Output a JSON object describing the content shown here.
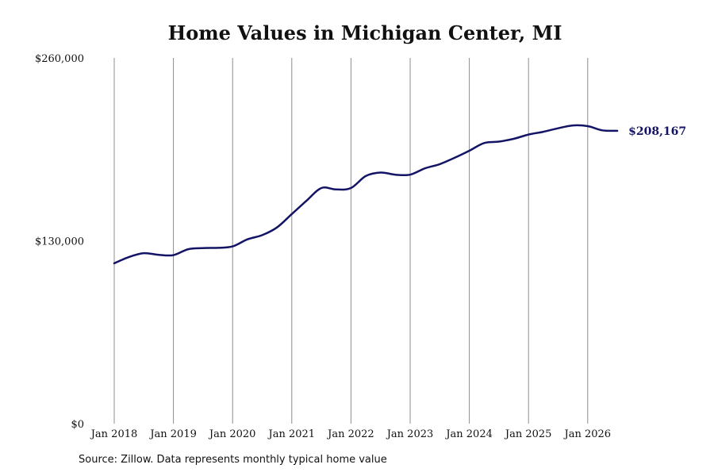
{
  "chart_data": {
    "type": "line",
    "title": "Home Values in Michigan Center, MI",
    "xlabel": "",
    "ylabel": "",
    "ylim": [
      0,
      260000
    ],
    "y_ticks": [
      {
        "value": 0,
        "label": "$0"
      },
      {
        "value": 130000,
        "label": "$130,000"
      },
      {
        "value": 260000,
        "label": "$260,000"
      }
    ],
    "x_ticks": [
      {
        "value": "2018-01",
        "label": "Jan 2018"
      },
      {
        "value": "2019-01",
        "label": "Jan 2019"
      },
      {
        "value": "2020-01",
        "label": "Jan 2020"
      },
      {
        "value": "2021-01",
        "label": "Jan 2021"
      },
      {
        "value": "2022-01",
        "label": "Jan 2022"
      },
      {
        "value": "2023-01",
        "label": "Jan 2023"
      },
      {
        "value": "2024-01",
        "label": "Jan 2024"
      },
      {
        "value": "2025-01",
        "label": "Jan 2025"
      },
      {
        "value": "2026-01",
        "label": "Jan 2026"
      }
    ],
    "grid": "vertical",
    "series": [
      {
        "color": "#141466",
        "points": [
          [
            "2018-01",
            114000
          ],
          [
            "2018-04",
            118500
          ],
          [
            "2018-07",
            121200
          ],
          [
            "2018-10",
            120000
          ],
          [
            "2019-01",
            119800
          ],
          [
            "2019-04",
            124000
          ],
          [
            "2019-07",
            124800
          ],
          [
            "2019-10",
            125000
          ],
          [
            "2020-01",
            126000
          ],
          [
            "2020-04",
            131000
          ],
          [
            "2020-07",
            134000
          ],
          [
            "2020-10",
            139500
          ],
          [
            "2021-01",
            149000
          ],
          [
            "2021-04",
            158500
          ],
          [
            "2021-07",
            167500
          ],
          [
            "2021-10",
            166500
          ],
          [
            "2022-01",
            167500
          ],
          [
            "2022-04",
            176000
          ],
          [
            "2022-07",
            178500
          ],
          [
            "2022-10",
            177000
          ],
          [
            "2023-01",
            177000
          ],
          [
            "2023-04",
            181500
          ],
          [
            "2023-07",
            184500
          ],
          [
            "2023-10",
            189000
          ],
          [
            "2024-01",
            194000
          ],
          [
            "2024-04",
            199500
          ],
          [
            "2024-07",
            200500
          ],
          [
            "2024-10",
            202500
          ],
          [
            "2025-01",
            205500
          ],
          [
            "2025-04",
            207500
          ],
          [
            "2025-07",
            210000
          ],
          [
            "2025-10",
            212000
          ],
          [
            "2026-01",
            211500
          ],
          [
            "2026-04",
            208500
          ],
          [
            "2026-07",
            208167
          ]
        ]
      }
    ],
    "end_label": "$208,167"
  },
  "footer": {
    "source": "Source: Zillow. Data represents monthly typical home value"
  }
}
